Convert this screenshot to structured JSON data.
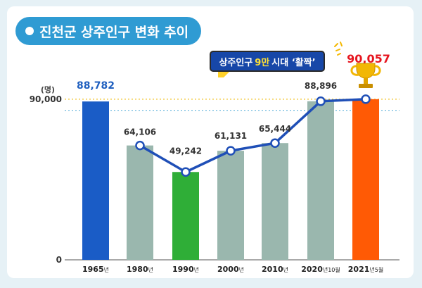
{
  "header": {
    "title": "진천군 상주인구 변화 추이"
  },
  "banner": {
    "text_before": "상주인구",
    "text_highlight": "9만",
    "text_after": "시대 ‘활짝’"
  },
  "colors": {
    "background": "#e6f1f6",
    "panel": "#ffffff",
    "title_pill": "#2f9bd3",
    "line": "#1f4fb7",
    "bar_default": "#9ab7ae",
    "bar_1965": "#1a5cc6",
    "bar_1990": "#2fae37",
    "bar_2021": "#ff5a05",
    "label_highlight_blue": "#1f5fbf",
    "label_highlight_red": "#e6141e",
    "reference_line": "#f0c020",
    "reference_line_blue": "#4aa8d6"
  },
  "icons": {
    "trophy": "trophy-icon",
    "sparkle": "sparkle-icon"
  },
  "chart_data": {
    "type": "bar",
    "title": "진천군 상주인구 변화 추이",
    "ylabel": "(명)",
    "xlabel": "",
    "categories": [
      "1965년",
      "1980년",
      "1990년",
      "2000년",
      "2010년",
      "2020년 10월",
      "2021년 5월"
    ],
    "category_parts": [
      {
        "main": "1965",
        "suffix": "년"
      },
      {
        "main": "1980",
        "suffix": "년"
      },
      {
        "main": "1990",
        "suffix": "년"
      },
      {
        "main": "2000",
        "suffix": "년"
      },
      {
        "main": "2010",
        "suffix": "년"
      },
      {
        "main": "2020",
        "suffix": "년10월"
      },
      {
        "main": "2021",
        "suffix": "년5월"
      }
    ],
    "values": [
      88782,
      64106,
      49242,
      61131,
      65444,
      88896,
      90057
    ],
    "value_labels": [
      "88,782",
      "64,106",
      "49,242",
      "61,131",
      "65,444",
      "88,896",
      "90,057"
    ],
    "line_overlay": true,
    "y_ticks": [
      0,
      90000
    ],
    "y_tick_labels": [
      "0",
      "90,000"
    ],
    "ylim": [
      0,
      90000
    ],
    "grid": false
  }
}
